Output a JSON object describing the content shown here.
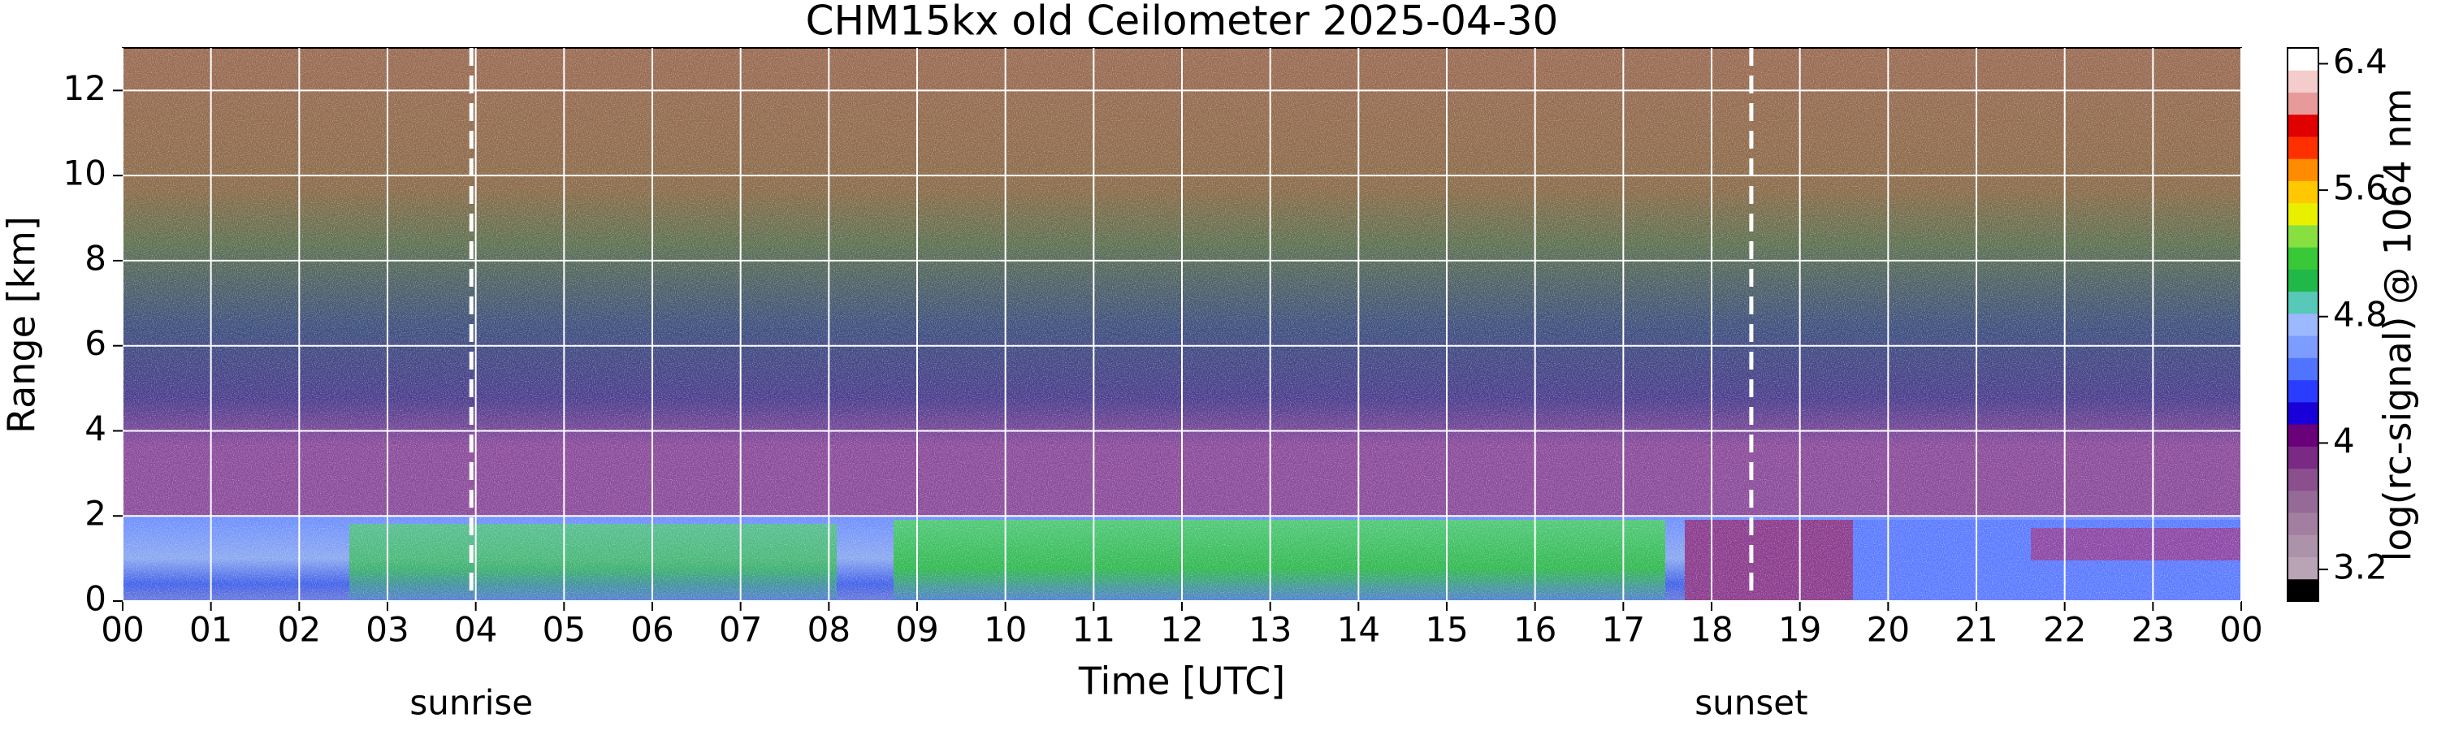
{
  "chart_data": {
    "type": "heatmap",
    "title": "CHM15kx old Ceilometer 2025-04-30",
    "x_label": "Time [UTC]",
    "y_label": "Range [km]",
    "xlim": [
      0,
      24
    ],
    "xticks": [
      {
        "value": 0,
        "label": "00"
      },
      {
        "value": 1,
        "label": "01"
      },
      {
        "value": 2,
        "label": "02"
      },
      {
        "value": 3,
        "label": "03"
      },
      {
        "value": 4,
        "label": "04"
      },
      {
        "value": 5,
        "label": "05"
      },
      {
        "value": 6,
        "label": "06"
      },
      {
        "value": 7,
        "label": "07"
      },
      {
        "value": 8,
        "label": "08"
      },
      {
        "value": 9,
        "label": "09"
      },
      {
        "value": 10,
        "label": "10"
      },
      {
        "value": 11,
        "label": "11"
      },
      {
        "value": 12,
        "label": "12"
      },
      {
        "value": 13,
        "label": "13"
      },
      {
        "value": 14,
        "label": "14"
      },
      {
        "value": 15,
        "label": "15"
      },
      {
        "value": 16,
        "label": "16"
      },
      {
        "value": 17,
        "label": "17"
      },
      {
        "value": 18,
        "label": "18"
      },
      {
        "value": 19,
        "label": "19"
      },
      {
        "value": 20,
        "label": "20"
      },
      {
        "value": 21,
        "label": "21"
      },
      {
        "value": 22,
        "label": "22"
      },
      {
        "value": 23,
        "label": "23"
      },
      {
        "value": 24,
        "label": "00"
      }
    ],
    "ylim": [
      0,
      13
    ],
    "yticks": [
      0,
      2,
      4,
      6,
      8,
      10,
      12
    ],
    "grid": true,
    "annotations": [
      {
        "text": "sunrise",
        "x": 3.95
      },
      {
        "text": "sunset",
        "x": 18.45
      }
    ],
    "colorbar": {
      "label": "log(rc-signal) @ 1064 nm",
      "clim": [
        3.0,
        6.5
      ],
      "ticks": [
        3.2,
        4,
        4.8,
        5.6,
        6.4
      ],
      "colors": [
        "#000000",
        "#b8a4b4",
        "#ad93aa",
        "#a27fa0",
        "#966a96",
        "#8a4f8c",
        "#7a2a84",
        "#6a007a",
        "#1a00d8",
        "#2a3cff",
        "#5074ff",
        "#7c9cff",
        "#9cb8ff",
        "#58c8b8",
        "#20b848",
        "#38c838",
        "#88e040",
        "#e8f000",
        "#ffc800",
        "#ff8c00",
        "#ff3000",
        "#e00000",
        "#e89a9a",
        "#f4cccc",
        "#ffffff"
      ]
    }
  }
}
